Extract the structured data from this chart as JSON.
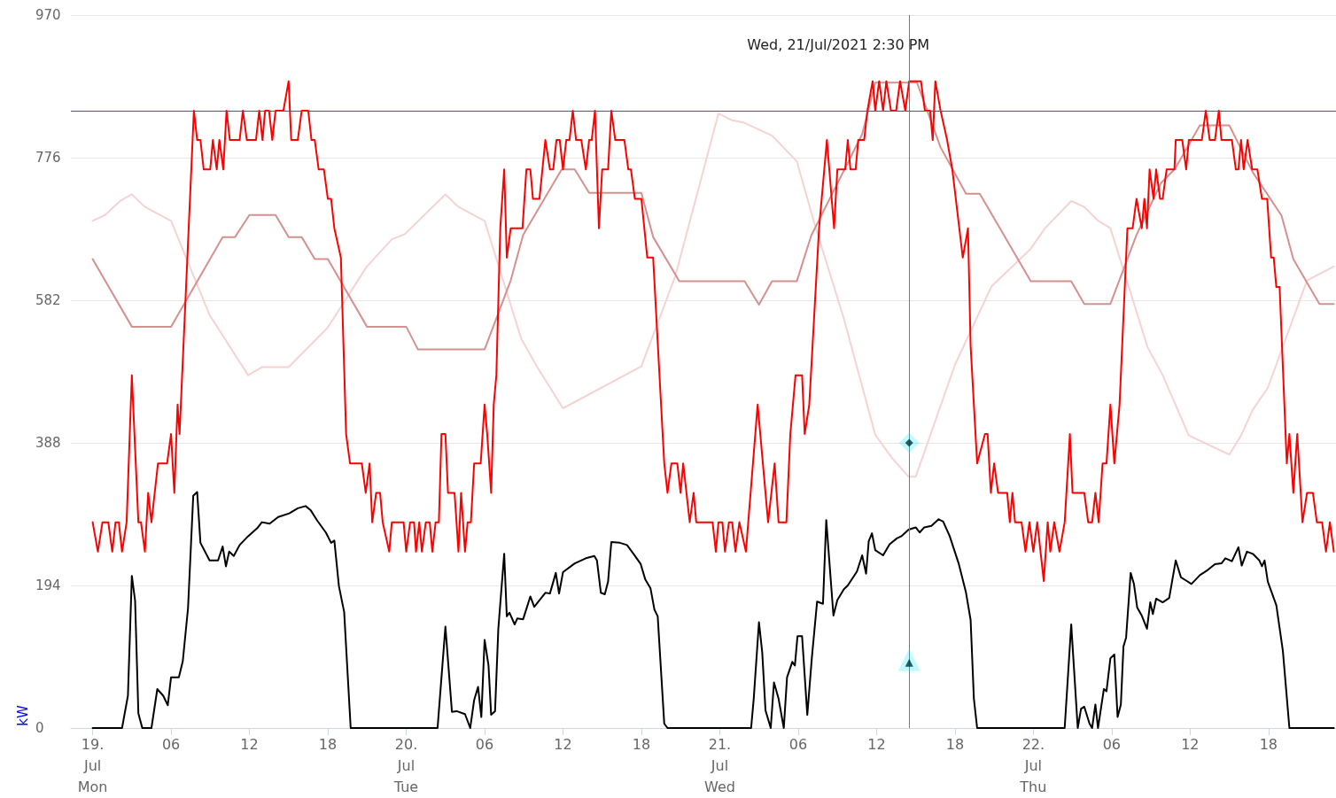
{
  "chart_data": {
    "type": "line",
    "marker": "none",
    "grid": "y",
    "ylabel": "kW",
    "ylim": [
      0,
      970
    ],
    "yticks": [
      0,
      194,
      388,
      582,
      776,
      970
    ],
    "xlim": [
      "2021-07-18T22:20",
      "2021-07-22T23:10"
    ],
    "xticks": [
      {
        "value": "2021-07-19T00:00",
        "label": "19.\nJul\nMon"
      },
      {
        "value": "2021-07-19T06:00",
        "label": "06"
      },
      {
        "value": "2021-07-19T12:00",
        "label": "12"
      },
      {
        "value": "2021-07-19T18:00",
        "label": "18"
      },
      {
        "value": "2021-07-20T00:00",
        "label": "20.\nJul\nTue"
      },
      {
        "value": "2021-07-20T06:00",
        "label": "06"
      },
      {
        "value": "2021-07-20T12:00",
        "label": "12"
      },
      {
        "value": "2021-07-20T18:00",
        "label": "18"
      },
      {
        "value": "2021-07-21T00:00",
        "label": "21.\nJul\nWed"
      },
      {
        "value": "2021-07-21T06:00",
        "label": "06"
      },
      {
        "value": "2021-07-21T12:00",
        "label": "12"
      },
      {
        "value": "2021-07-21T18:00",
        "label": "18"
      },
      {
        "value": "2021-07-22T00:00",
        "label": "22.\nJul\nThu"
      },
      {
        "value": "2021-07-22T06:00",
        "label": "06"
      },
      {
        "value": "2021-07-22T12:00",
        "label": "12"
      },
      {
        "value": "2021-07-22T18:00",
        "label": "18"
      }
    ],
    "ref_lines": [
      {
        "axis": "y",
        "value": 840,
        "color": "#3d5a9e"
      },
      {
        "axis": "x",
        "value": "2021-07-21T14:30",
        "label": "Wed, 21/Jul/2021 2:30 PM",
        "color": "#777777"
      }
    ],
    "series": [
      {
        "color": "#f5d3d3",
        "x": [
          "2021-07-19T00:00",
          "2021-07-19T00:57",
          "2021-07-19T02:06",
          "2021-07-19T03:00",
          "2021-07-19T04:00",
          "2021-07-19T06:00",
          "2021-07-19T08:57",
          "2021-07-19T11:54",
          "2021-07-19T12:57",
          "2021-07-19T15:00",
          "2021-07-19T18:00",
          "2021-07-19T20:57",
          "2021-07-19T22:54",
          "2021-07-19T23:54",
          "2021-07-20T03:00",
          "2021-07-20T04:00",
          "2021-07-20T06:00",
          "2021-07-20T08:48",
          "2021-07-20T10:00",
          "2021-07-20T12:00",
          "2021-07-20T18:00",
          "2021-07-20T20:36",
          "2021-07-20T23:54",
          "2021-07-21T00:54",
          "2021-07-21T01:48",
          "2021-07-21T04:00",
          "2021-07-21T05:54",
          "2021-07-21T07:18",
          "2021-07-21T09:30",
          "2021-07-21T11:54",
          "2021-07-21T13:12",
          "2021-07-21T14:27",
          "2021-07-21T15:00",
          "2021-07-21T18:00",
          "2021-07-21T20:48",
          "2021-07-21T23:48",
          "2021-07-22T00:54",
          "2021-07-22T02:54",
          "2021-07-22T03:54",
          "2021-07-22T04:54",
          "2021-07-22T05:54",
          "2021-07-22T08:45",
          "2021-07-22T09:54",
          "2021-07-22T11:54",
          "2021-07-22T15:00",
          "2021-07-22T15:54",
          "2021-07-22T16:48",
          "2021-07-22T17:57",
          "2021-07-22T20:57",
          "2021-07-22T23:00"
        ],
        "values": [
          690,
          698,
          717,
          726,
          709,
          690,
          562,
          480,
          491,
          491,
          545,
          627,
          665,
          672,
          726,
          709,
          690,
          530,
          492,
          435,
          492,
          615,
          836,
          827,
          824,
          806,
          771,
          683,
          557,
          399,
          367,
          342,
          342,
          494,
          601,
          652,
          680,
          717,
          709,
          691,
          680,
          518,
          480,
          398,
          372,
          398,
          433,
          463,
          609,
          628
        ]
      },
      {
        "color": "#d4918f",
        "x": [
          "2021-07-19T00:00",
          "2021-07-19T03:00",
          "2021-07-19T06:00",
          "2021-07-19T09:57",
          "2021-07-19T10:54",
          "2021-07-19T12:00",
          "2021-07-19T14:00",
          "2021-07-19T15:00",
          "2021-07-19T16:00",
          "2021-07-19T17:00",
          "2021-07-19T18:00",
          "2021-07-19T21:00",
          "2021-07-20T00:00",
          "2021-07-20T00:54",
          "2021-07-20T06:00",
          "2021-07-20T08:00",
          "2021-07-20T08:57",
          "2021-07-20T11:54",
          "2021-07-20T12:54",
          "2021-07-20T14:00",
          "2021-07-20T18:00",
          "2021-07-20T18:54",
          "2021-07-20T20:54",
          "2021-07-21T01:54",
          "2021-07-21T03:00",
          "2021-07-21T04:00",
          "2021-07-21T05:54",
          "2021-07-21T07:00",
          "2021-07-21T10:54",
          "2021-07-21T11:54",
          "2021-07-21T15:06",
          "2021-07-21T16:54",
          "2021-07-21T18:51",
          "2021-07-21T19:54",
          "2021-07-21T23:48",
          "2021-07-22T02:54",
          "2021-07-22T03:54",
          "2021-07-22T05:54",
          "2021-07-22T07:54",
          "2021-07-22T09:45",
          "2021-07-22T10:51",
          "2021-07-22T12:45",
          "2021-07-22T15:00",
          "2021-07-22T16:48",
          "2021-07-22T19:00",
          "2021-07-22T19:54",
          "2021-07-22T21:54",
          "2021-07-22T23:00"
        ],
        "values": [
          638,
          546,
          546,
          668,
          668,
          698,
          698,
          668,
          668,
          638,
          638,
          546,
          546,
          515,
          515,
          609,
          671,
          760,
          760,
          728,
          728,
          668,
          608,
          608,
          576,
          608,
          608,
          670,
          808,
          878,
          878,
          790,
          727,
          727,
          608,
          608,
          577,
          577,
          671,
          741,
          761,
          820,
          820,
          756,
          697,
          638,
          577,
          577
        ]
      },
      {
        "color": "#ff0000",
        "x": [
          "2021-07-19T00:00",
          "2021-07-19T00:24",
          "2021-07-19T00:45",
          "2021-07-19T01:12",
          "2021-07-19T01:30",
          "2021-07-19T01:45",
          "2021-07-19T02:00",
          "2021-07-19T02:15",
          "2021-07-19T02:36",
          "2021-07-19T03:00",
          "2021-07-19T03:30",
          "2021-07-19T03:42",
          "2021-07-19T04:00",
          "2021-07-19T04:15",
          "2021-07-19T04:30",
          "2021-07-19T05:00",
          "2021-07-19T05:42",
          "2021-07-19T06:00",
          "2021-07-19T06:15",
          "2021-07-19T06:30",
          "2021-07-19T06:39",
          "2021-07-19T07:45",
          "2021-07-19T08:00",
          "2021-07-19T08:15",
          "2021-07-19T08:30",
          "2021-07-19T09:00",
          "2021-07-19T09:12",
          "2021-07-19T09:30",
          "2021-07-19T09:42",
          "2021-07-19T10:00",
          "2021-07-19T10:15",
          "2021-07-19T10:30",
          "2021-07-19T11:15",
          "2021-07-19T11:30",
          "2021-07-19T11:48",
          "2021-07-19T12:30",
          "2021-07-19T12:45",
          "2021-07-19T13:00",
          "2021-07-19T13:12",
          "2021-07-19T13:30",
          "2021-07-19T13:45",
          "2021-07-19T14:00",
          "2021-07-19T14:36",
          "2021-07-19T15:00",
          "2021-07-19T15:12",
          "2021-07-19T15:42",
          "2021-07-19T16:00",
          "2021-07-19T16:30",
          "2021-07-19T16:45",
          "2021-07-19T17:00",
          "2021-07-19T17:18",
          "2021-07-19T17:42",
          "2021-07-19T18:00",
          "2021-07-19T18:15",
          "2021-07-19T18:30",
          "2021-07-19T19:00",
          "2021-07-19T19:24",
          "2021-07-19T19:42",
          "2021-07-19T20:36",
          "2021-07-19T20:54",
          "2021-07-19T21:12",
          "2021-07-19T21:24",
          "2021-07-19T21:42",
          "2021-07-19T22:00",
          "2021-07-19T22:12",
          "2021-07-19T22:42",
          "2021-07-19T22:54",
          "2021-07-19T23:06",
          "2021-07-19T23:48",
          "2021-07-20T00:00",
          "2021-07-20T00:18",
          "2021-07-20T00:36",
          "2021-07-20T00:45",
          "2021-07-20T01:00",
          "2021-07-20T01:12",
          "2021-07-20T01:30",
          "2021-07-20T01:48",
          "2021-07-20T02:00",
          "2021-07-20T02:15",
          "2021-07-20T02:30",
          "2021-07-20T02:42",
          "2021-07-20T03:00",
          "2021-07-20T03:12",
          "2021-07-20T03:42",
          "2021-07-20T04:00",
          "2021-07-20T04:12",
          "2021-07-20T04:30",
          "2021-07-20T04:42",
          "2021-07-20T04:57",
          "2021-07-20T05:12",
          "2021-07-20T05:42",
          "2021-07-20T06:00",
          "2021-07-20T06:12",
          "2021-07-20T06:30",
          "2021-07-20T06:42",
          "2021-07-20T06:54",
          "2021-07-20T07:12",
          "2021-07-20T07:30",
          "2021-07-20T07:42",
          "2021-07-20T08:00",
          "2021-07-20T08:54",
          "2021-07-20T09:12",
          "2021-07-20T09:30",
          "2021-07-20T09:42",
          "2021-07-20T10:12",
          "2021-07-20T10:39",
          "2021-07-20T11:00",
          "2021-07-20T11:15",
          "2021-07-20T11:30",
          "2021-07-20T11:45",
          "2021-07-20T12:00",
          "2021-07-20T12:15",
          "2021-07-20T12:30",
          "2021-07-20T12:45",
          "2021-07-20T13:00",
          "2021-07-20T13:24",
          "2021-07-20T13:45",
          "2021-07-20T14:00",
          "2021-07-20T14:12",
          "2021-07-20T14:27",
          "2021-07-20T14:45",
          "2021-07-20T15:00",
          "2021-07-20T15:27",
          "2021-07-20T15:42",
          "2021-07-20T16:00",
          "2021-07-20T16:42",
          "2021-07-20T17:00",
          "2021-07-20T17:12",
          "2021-07-20T17:30",
          "2021-07-20T18:00",
          "2021-07-20T18:27",
          "2021-07-20T18:54",
          "2021-07-20T19:45",
          "2021-07-20T20:00",
          "2021-07-20T20:18",
          "2021-07-20T20:45",
          "2021-07-20T21:00",
          "2021-07-20T21:12",
          "2021-07-20T21:42",
          "2021-07-20T22:00",
          "2021-07-20T22:12",
          "2021-07-20T23:27",
          "2021-07-20T23:42",
          "2021-07-20T23:54",
          "2021-07-21T00:12",
          "2021-07-21T00:24",
          "2021-07-21T00:42",
          "2021-07-21T00:57",
          "2021-07-21T01:12",
          "2021-07-21T01:30",
          "2021-07-21T02:00",
          "2021-07-21T02:54",
          "2021-07-21T03:42",
          "2021-07-21T04:12",
          "2021-07-21T04:30",
          "2021-07-21T05:06",
          "2021-07-21T05:24",
          "2021-07-21T05:48",
          "2021-07-21T06:18",
          "2021-07-21T06:30",
          "2021-07-21T06:51",
          "2021-07-21T07:36",
          "2021-07-21T08:12",
          "2021-07-21T08:45",
          "2021-07-21T09:00",
          "2021-07-21T09:36",
          "2021-07-21T09:48",
          "2021-07-21T10:00",
          "2021-07-21T10:24",
          "2021-07-21T10:36",
          "2021-07-21T11:03",
          "2021-07-21T11:18",
          "2021-07-21T11:42",
          "2021-07-21T11:54",
          "2021-07-21T12:12",
          "2021-07-21T12:30",
          "2021-07-21T12:45",
          "2021-07-21T13:06",
          "2021-07-21T13:30",
          "2021-07-21T13:48",
          "2021-07-21T14:12",
          "2021-07-21T14:30",
          "2021-07-21T15:24",
          "2021-07-21T15:42",
          "2021-07-21T16:06",
          "2021-07-21T16:18",
          "2021-07-21T16:30",
          "2021-07-21T16:54",
          "2021-07-21T17:24",
          "2021-07-21T17:48",
          "2021-07-21T18:36",
          "2021-07-21T19:00",
          "2021-07-21T19:12",
          "2021-07-21T19:42",
          "2021-07-21T20:18",
          "2021-07-21T20:30",
          "2021-07-21T20:45",
          "2021-07-21T21:00",
          "2021-07-21T21:18",
          "2021-07-21T22:00",
          "2021-07-21T22:12",
          "2021-07-21T22:24",
          "2021-07-21T22:36",
          "2021-07-21T23:06",
          "2021-07-21T23:24",
          "2021-07-21T23:42",
          "2021-07-22T00:00",
          "2021-07-22T00:18",
          "2021-07-22T00:48",
          "2021-07-22T01:06",
          "2021-07-22T01:18",
          "2021-07-22T01:36",
          "2021-07-22T02:00",
          "2021-07-22T02:24",
          "2021-07-22T02:48",
          "2021-07-22T03:00",
          "2021-07-22T03:54",
          "2021-07-22T04:12",
          "2021-07-22T04:30",
          "2021-07-22T04:45",
          "2021-07-22T05:00",
          "2021-07-22T05:18",
          "2021-07-22T05:36",
          "2021-07-22T05:54",
          "2021-07-22T06:12",
          "2021-07-22T06:36",
          "2021-07-22T07:12",
          "2021-07-22T07:36",
          "2021-07-22T07:54",
          "2021-07-22T08:18",
          "2021-07-22T08:30",
          "2021-07-22T08:42",
          "2021-07-22T08:54",
          "2021-07-22T09:12",
          "2021-07-22T09:24",
          "2021-07-22T09:42",
          "2021-07-22T09:54",
          "2021-07-22T10:12",
          "2021-07-22T10:48",
          "2021-07-22T10:54",
          "2021-07-22T11:24",
          "2021-07-22T11:42",
          "2021-07-22T11:54",
          "2021-07-22T12:54",
          "2021-07-22T13:12",
          "2021-07-22T13:30",
          "2021-07-22T13:54",
          "2021-07-22T14:12",
          "2021-07-22T14:24",
          "2021-07-22T15:12",
          "2021-07-22T15:30",
          "2021-07-22T15:42",
          "2021-07-22T15:54",
          "2021-07-22T16:06",
          "2021-07-22T16:24",
          "2021-07-22T16:45",
          "2021-07-22T17:09",
          "2021-07-22T17:30",
          "2021-07-22T17:54",
          "2021-07-22T18:12",
          "2021-07-22T18:24",
          "2021-07-22T18:36",
          "2021-07-22T18:51",
          "2021-07-22T19:24",
          "2021-07-22T19:36",
          "2021-07-22T19:54",
          "2021-07-22T20:12",
          "2021-07-22T20:36",
          "2021-07-22T20:57",
          "2021-07-22T21:24",
          "2021-07-22T21:42",
          "2021-07-22T22:06",
          "2021-07-22T22:24",
          "2021-07-22T22:42",
          "2021-07-22T23:00"
        ],
        "values": [
          280,
          240,
          280,
          280,
          240,
          280,
          280,
          240,
          280,
          480,
          280,
          280,
          240,
          320,
          280,
          360,
          360,
          400,
          320,
          440,
          400,
          840,
          800,
          800,
          760,
          760,
          800,
          760,
          800,
          760,
          840,
          800,
          800,
          840,
          800,
          800,
          840,
          800,
          840,
          840,
          800,
          840,
          840,
          880,
          800,
          800,
          840,
          840,
          800,
          800,
          760,
          760,
          720,
          720,
          680,
          640,
          400,
          360,
          360,
          320,
          360,
          280,
          320,
          320,
          280,
          240,
          280,
          280,
          280,
          240,
          280,
          280,
          240,
          280,
          240,
          280,
          280,
          240,
          280,
          280,
          400,
          400,
          320,
          320,
          240,
          320,
          240,
          280,
          280,
          360,
          360,
          440,
          400,
          320,
          440,
          480,
          680,
          760,
          640,
          680,
          680,
          760,
          760,
          720,
          720,
          800,
          760,
          760,
          800,
          800,
          760,
          800,
          800,
          840,
          800,
          800,
          760,
          800,
          800,
          840,
          680,
          760,
          760,
          840,
          800,
          800,
          760,
          760,
          720,
          720,
          640,
          640,
          360,
          320,
          360,
          360,
          320,
          360,
          280,
          320,
          280,
          280,
          240,
          280,
          280,
          240,
          280,
          280,
          240,
          280,
          240,
          440,
          280,
          360,
          280,
          280,
          400,
          480,
          480,
          400,
          440,
          680,
          800,
          680,
          760,
          760,
          800,
          760,
          760,
          800,
          800,
          840,
          880,
          840,
          880,
          840,
          880,
          840,
          840,
          880,
          840,
          880,
          880,
          840,
          840,
          800,
          880,
          840,
          800,
          760,
          640,
          680,
          520,
          360,
          400,
          400,
          320,
          360,
          320,
          320,
          280,
          320,
          280,
          280,
          240,
          280,
          240,
          280,
          200,
          280,
          240,
          280,
          240,
          280,
          400,
          320,
          320,
          280,
          280,
          320,
          280,
          360,
          360,
          440,
          360,
          440,
          680,
          680,
          720,
          680,
          720,
          680,
          760,
          720,
          760,
          720,
          720,
          760,
          760,
          800,
          800,
          760,
          800,
          800,
          840,
          800,
          800,
          840,
          800,
          800,
          760,
          760,
          800,
          760,
          800,
          760,
          760,
          720,
          720,
          640,
          640,
          600,
          600,
          360,
          400,
          320,
          400,
          280,
          320,
          320,
          280,
          280,
          240,
          280,
          240
        ]
      },
      {
        "color": "#000000",
        "x": [
          "2021-07-19T00:00",
          "2021-07-19T02:15",
          "2021-07-19T02:42",
          "2021-07-19T03:00",
          "2021-07-19T03:15",
          "2021-07-19T03:30",
          "2021-07-19T03:48",
          "2021-07-19T04:30",
          "2021-07-19T04:57",
          "2021-07-19T05:24",
          "2021-07-19T05:45",
          "2021-07-19T06:00",
          "2021-07-19T06:36",
          "2021-07-19T06:54",
          "2021-07-19T07:18",
          "2021-07-19T07:42",
          "2021-07-19T08:00",
          "2021-07-19T08:15",
          "2021-07-19T08:57",
          "2021-07-19T09:36",
          "2021-07-19T09:57",
          "2021-07-19T10:12",
          "2021-07-19T10:27",
          "2021-07-19T10:48",
          "2021-07-19T11:15",
          "2021-07-19T11:54",
          "2021-07-19T12:36",
          "2021-07-19T12:57",
          "2021-07-19T13:33",
          "2021-07-19T14:12",
          "2021-07-19T15:03",
          "2021-07-19T15:42",
          "2021-07-19T16:18",
          "2021-07-19T16:42",
          "2021-07-19T17:12",
          "2021-07-19T17:51",
          "2021-07-19T18:15",
          "2021-07-19T18:30",
          "2021-07-19T18:51",
          "2021-07-19T19:15",
          "2021-07-19T19:45",
          "2021-07-20T02:24",
          "2021-07-20T03:00",
          "2021-07-20T03:30",
          "2021-07-20T03:51",
          "2021-07-20T04:30",
          "2021-07-20T04:54",
          "2021-07-20T05:12",
          "2021-07-20T05:30",
          "2021-07-20T05:45",
          "2021-07-20T06:00",
          "2021-07-20T06:18",
          "2021-07-20T06:30",
          "2021-07-20T06:48",
          "2021-07-20T07:03",
          "2021-07-20T07:30",
          "2021-07-20T07:42",
          "2021-07-20T07:54",
          "2021-07-20T08:18",
          "2021-07-20T08:30",
          "2021-07-20T08:57",
          "2021-07-20T09:30",
          "2021-07-20T09:48",
          "2021-07-20T10:18",
          "2021-07-20T10:39",
          "2021-07-20T11:00",
          "2021-07-20T11:27",
          "2021-07-20T11:42",
          "2021-07-20T12:00",
          "2021-07-20T12:54",
          "2021-07-20T13:45",
          "2021-07-20T14:24",
          "2021-07-20T14:36",
          "2021-07-20T14:54",
          "2021-07-20T15:12",
          "2021-07-20T15:27",
          "2021-07-20T15:42",
          "2021-07-20T16:21",
          "2021-07-20T16:54",
          "2021-07-20T17:24",
          "2021-07-20T17:57",
          "2021-07-20T18:18",
          "2021-07-20T18:42",
          "2021-07-20T19:00",
          "2021-07-20T19:15",
          "2021-07-20T19:45",
          "2021-07-20T20:00",
          "2021-07-21T02:24",
          "2021-07-21T02:36",
          "2021-07-21T03:00",
          "2021-07-21T03:15",
          "2021-07-21T03:30",
          "2021-07-21T03:54",
          "2021-07-21T04:09",
          "2021-07-21T04:30",
          "2021-07-21T04:54",
          "2021-07-21T05:09",
          "2021-07-21T05:33",
          "2021-07-21T05:45",
          "2021-07-21T05:57",
          "2021-07-21T06:18",
          "2021-07-21T06:42",
          "2021-07-21T07:03",
          "2021-07-21T07:27",
          "2021-07-21T07:54",
          "2021-07-21T08:09",
          "2021-07-21T08:42",
          "2021-07-21T09:00",
          "2021-07-21T09:30",
          "2021-07-21T09:48",
          "2021-07-21T10:30",
          "2021-07-21T10:54",
          "2021-07-21T11:12",
          "2021-07-21T11:24",
          "2021-07-21T11:39",
          "2021-07-21T11:54",
          "2021-07-21T12:30",
          "2021-07-21T13:00",
          "2021-07-21T13:33",
          "2021-07-21T13:54",
          "2021-07-21T14:27",
          "2021-07-21T15:00",
          "2021-07-21T15:18",
          "2021-07-21T15:39",
          "2021-07-21T16:12",
          "2021-07-21T16:45",
          "2021-07-21T17:06",
          "2021-07-21T17:36",
          "2021-07-21T18:18",
          "2021-07-21T18:51",
          "2021-07-21T19:12",
          "2021-07-21T19:27",
          "2021-07-21T19:42",
          "2021-07-22T02:24",
          "2021-07-22T02:54",
          "2021-07-22T03:24",
          "2021-07-22T03:39",
          "2021-07-22T03:54",
          "2021-07-22T04:18",
          "2021-07-22T04:30",
          "2021-07-22T04:45",
          "2021-07-22T04:57",
          "2021-07-22T05:24",
          "2021-07-22T05:36",
          "2021-07-22T05:54",
          "2021-07-22T06:12",
          "2021-07-22T06:27",
          "2021-07-22T06:42",
          "2021-07-22T06:54",
          "2021-07-22T07:06",
          "2021-07-22T07:27",
          "2021-07-22T07:42",
          "2021-07-22T07:57",
          "2021-07-22T08:18",
          "2021-07-22T08:42",
          "2021-07-22T08:57",
          "2021-07-22T09:09",
          "2021-07-22T09:24",
          "2021-07-22T09:54",
          "2021-07-22T10:24",
          "2021-07-22T10:54",
          "2021-07-22T11:18",
          "2021-07-22T11:45",
          "2021-07-22T12:06",
          "2021-07-22T12:45",
          "2021-07-22T13:21",
          "2021-07-22T13:54",
          "2021-07-22T14:24",
          "2021-07-22T14:42",
          "2021-07-22T15:12",
          "2021-07-22T15:42",
          "2021-07-22T15:57",
          "2021-07-22T16:21",
          "2021-07-22T16:48",
          "2021-07-22T17:18",
          "2021-07-22T17:30",
          "2021-07-22T17:42",
          "2021-07-22T17:57",
          "2021-07-22T18:36",
          "2021-07-22T19:06",
          "2021-07-22T19:36",
          "2021-07-22T23:00"
        ],
        "values": [
          0,
          0,
          44,
          207,
          173,
          20,
          0,
          0,
          53,
          44,
          31,
          69,
          69,
          91,
          163,
          316,
          321,
          252,
          228,
          228,
          247,
          220,
          240,
          234,
          249,
          261,
          272,
          280,
          278,
          287,
          292,
          299,
          302,
          296,
          282,
          266,
          252,
          255,
          193,
          158,
          0,
          0,
          138,
          22,
          23,
          19,
          0,
          38,
          56,
          15,
          120,
          85,
          18,
          23,
          135,
          237,
          152,
          157,
          141,
          149,
          148,
          179,
          165,
          176,
          184,
          183,
          211,
          183,
          212,
          224,
          231,
          234,
          228,
          184,
          182,
          199,
          253,
          252,
          249,
          237,
          223,
          202,
          190,
          161,
          152,
          6,
          0,
          0,
          40,
          144,
          103,
          24,
          0,
          62,
          40,
          0,
          69,
          90,
          85,
          125,
          125,
          18,
          96,
          172,
          169,
          283,
          153,
          174,
          189,
          194,
          213,
          235,
          210,
          254,
          265,
          242,
          235,
          250,
          258,
          261,
          270,
          273,
          266,
          273,
          275,
          284,
          281,
          261,
          223,
          184,
          147,
          40,
          0,
          0,
          141,
          0,
          26,
          29,
          6,
          0,
          32,
          0,
          53,
          50,
          95,
          100,
          15,
          32,
          111,
          123,
          211,
          196,
          164,
          153,
          135,
          171,
          155,
          176,
          171,
          177,
          228,
          205,
          200,
          196,
          208,
          215,
          223,
          224,
          231,
          227,
          246,
          221,
          240,
          237,
          228,
          220,
          228,
          199,
          167,
          105,
          0,
          0
        ]
      },
      {
        "type": "scatter",
        "marker": "diamond",
        "color": "#000000",
        "x": [
          "2021-07-21T14:30"
        ],
        "values": [
          388
        ]
      },
      {
        "type": "scatter",
        "marker": "triangle",
        "color": "#000000",
        "x": [
          "2021-07-21T14:30"
        ],
        "values": [
          89
        ]
      }
    ]
  }
}
